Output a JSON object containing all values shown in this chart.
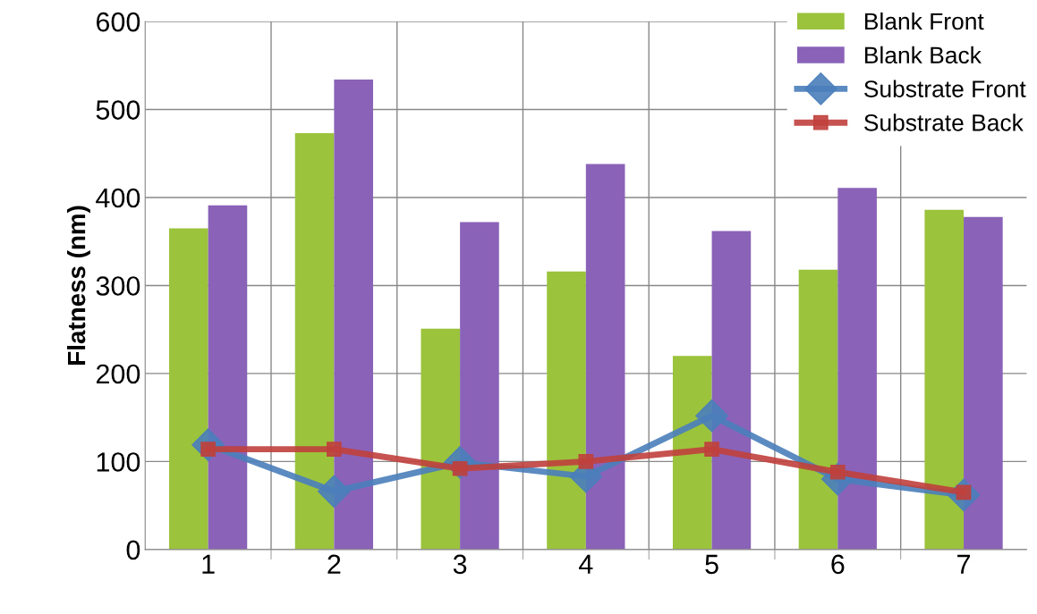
{
  "chart_data": {
    "type": "bar",
    "ylabel": "Flatness (nm)",
    "categories": [
      "1",
      "2",
      "3",
      "4",
      "5",
      "6",
      "7"
    ],
    "series": [
      {
        "name": "Blank Front",
        "color": "#9bc43c",
        "values": [
          365,
          473,
          251,
          316,
          220,
          318,
          386
        ]
      },
      {
        "name": "Blank Back",
        "color": "#8a63b8",
        "values": [
          391,
          534,
          372,
          438,
          362,
          411,
          378
        ]
      },
      {
        "name": "Substrate Front",
        "type": "line",
        "marker": "diamond",
        "color": "#4a7ebb",
        "values": [
          119,
          66,
          99,
          83,
          152,
          80,
          62
        ]
      },
      {
        "name": "Substrate Back",
        "type": "line",
        "marker": "square",
        "color": "#c0403c",
        "values": [
          114,
          114,
          92,
          100,
          114,
          88,
          65
        ]
      }
    ],
    "ylim": [
      0,
      600
    ],
    "yticks": [
      0,
      100,
      200,
      300,
      400,
      500,
      600
    ],
    "grid": true,
    "legend": "top right"
  }
}
